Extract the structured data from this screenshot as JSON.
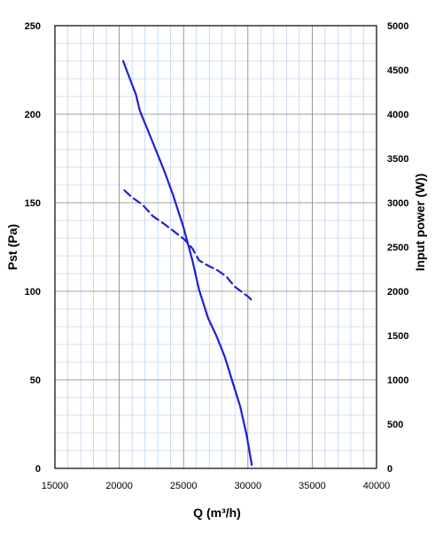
{
  "chart_data": {
    "type": "line",
    "title": "",
    "xlabel": "Q (m³/h)",
    "ylabel_left": "Pst (Pa)",
    "ylabel_right": "Input power  (W))",
    "xlim": [
      15000,
      40000
    ],
    "ylim_left": [
      0,
      250
    ],
    "ylim_right": [
      0,
      5000
    ],
    "x_ticks": [
      "15000",
      "20000",
      "25000",
      "30000",
      "35000",
      "40000"
    ],
    "y_left_ticks": [
      "0",
      "50",
      "100",
      "150",
      "200",
      "250"
    ],
    "y_right_ticks": [
      "0",
      "500",
      "1000",
      "1500",
      "2000",
      "2500",
      "3000",
      "3500",
      "4000",
      "4500",
      "5000"
    ],
    "grid": true,
    "series": [
      {
        "axis": "left",
        "style": "solid",
        "color": "#1f1fd6",
        "x": [
          20300,
          21300,
          21600,
          22500,
          23500,
          24200,
          25000,
          25700,
          26200,
          26900,
          27600,
          28200,
          28800,
          29400,
          29900,
          30300
        ],
        "y": [
          230,
          211,
          202,
          186,
          168,
          154,
          136,
          117,
          101,
          85,
          74,
          63,
          49,
          35,
          19,
          2
        ]
      },
      {
        "axis": "right",
        "style": "dashed",
        "color": "#1f1fd6",
        "x": [
          20400,
          21000,
          21800,
          22600,
          23500,
          24400,
          25100,
          25700,
          26200,
          26900,
          27600,
          28300,
          29000,
          30100,
          30400
        ],
        "y": [
          3140,
          3060,
          2980,
          2850,
          2760,
          2660,
          2580,
          2480,
          2350,
          2290,
          2240,
          2170,
          2050,
          1930,
          1880
        ]
      }
    ]
  }
}
